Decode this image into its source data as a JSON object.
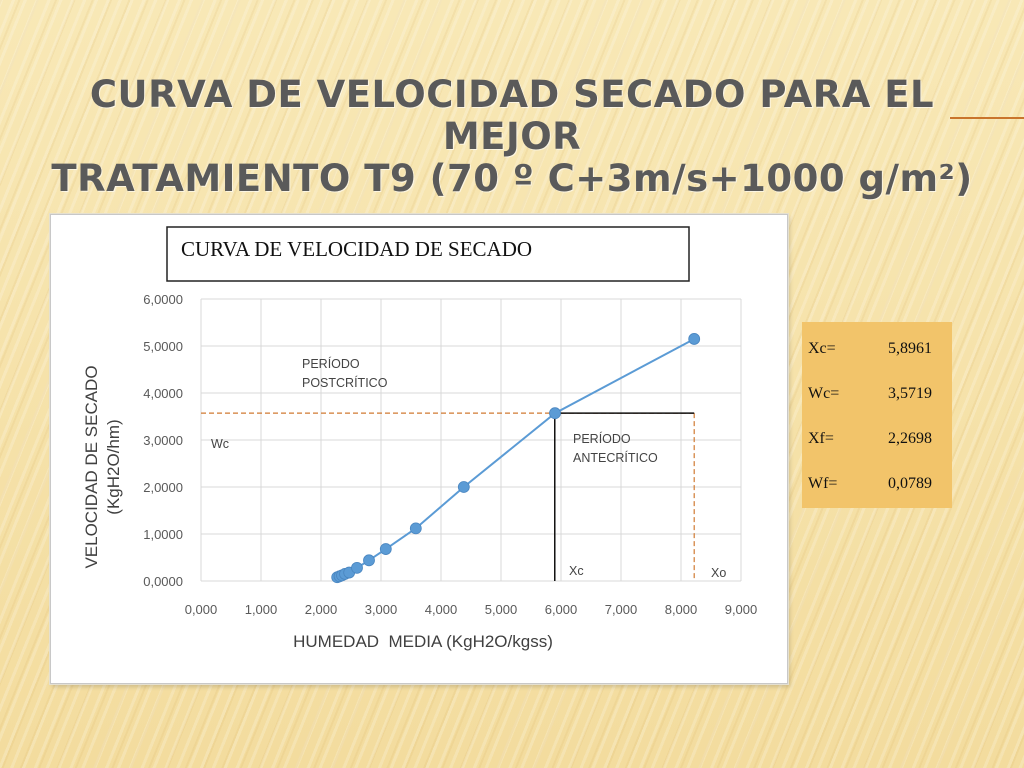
{
  "slide": {
    "title_line1": "CURVA DE VELOCIDAD SECADO PARA EL MEJOR",
    "title_line2": "TRATAMIENTO T9 (70 º C+3m/s+1000 g/m²)"
  },
  "params": [
    {
      "label": "Xc=",
      "value": "5,8961"
    },
    {
      "label": "Wc=",
      "value": "3,5719"
    },
    {
      "label": "Xf=",
      "value": "2,2698"
    },
    {
      "label": "Wf=",
      "value": "0,0789"
    }
  ],
  "colors": {
    "series": "#5b9bd5",
    "marker": "#5b9bd5",
    "reference": "#d07a32",
    "grid": "#d9d9d9",
    "axis_text": "#595959"
  },
  "chart_data": {
    "type": "scatter",
    "title": "CURVA DE VELOCIDAD DE SECADO",
    "xlabel": "HUMEDAD  MEDIA (KgH2O/kgss)",
    "ylabel_line1": "VELOCIDAD DE SECADO",
    "ylabel_line2": "(KgH2O/hm)",
    "xlim": [
      0,
      9
    ],
    "ylim": [
      0,
      6
    ],
    "x_ticks": [
      "0,000",
      "1,000",
      "2,000",
      "3,000",
      "4,000",
      "5,000",
      "6,000",
      "7,000",
      "8,000",
      "9,000"
    ],
    "y_ticks": [
      "0,0000",
      "1,0000",
      "2,0000",
      "3,0000",
      "4,0000",
      "5,0000",
      "6,0000"
    ],
    "grid": "vertical and horizontal",
    "series": [
      {
        "points": [
          {
            "x": 2.27,
            "y": 0.08
          },
          {
            "x": 2.31,
            "y": 0.1
          },
          {
            "x": 2.35,
            "y": 0.12
          },
          {
            "x": 2.4,
            "y": 0.15
          },
          {
            "x": 2.47,
            "y": 0.18
          },
          {
            "x": 2.6,
            "y": 0.28
          },
          {
            "x": 2.8,
            "y": 0.44
          },
          {
            "x": 3.08,
            "y": 0.68
          },
          {
            "x": 3.58,
            "y": 1.12
          },
          {
            "x": 4.38,
            "y": 2.0
          },
          {
            "x": 5.9,
            "y": 3.57
          },
          {
            "x": 8.22,
            "y": 5.15
          }
        ]
      }
    ],
    "reference_lines": {
      "wc": {
        "y": 3.5719
      },
      "xc": {
        "x": 5.8961
      },
      "xo": {
        "x": 8.22
      }
    },
    "annotations": {
      "postcritico_line1": "PERÍODO",
      "postcritico_line2": "POSTCRÍTICO",
      "antecritico_line1": "PERÍODO",
      "antecritico_line2": "ANTECRÍTICO",
      "wc": "Wc",
      "xc": "Xc",
      "xo": "Xo"
    }
  }
}
